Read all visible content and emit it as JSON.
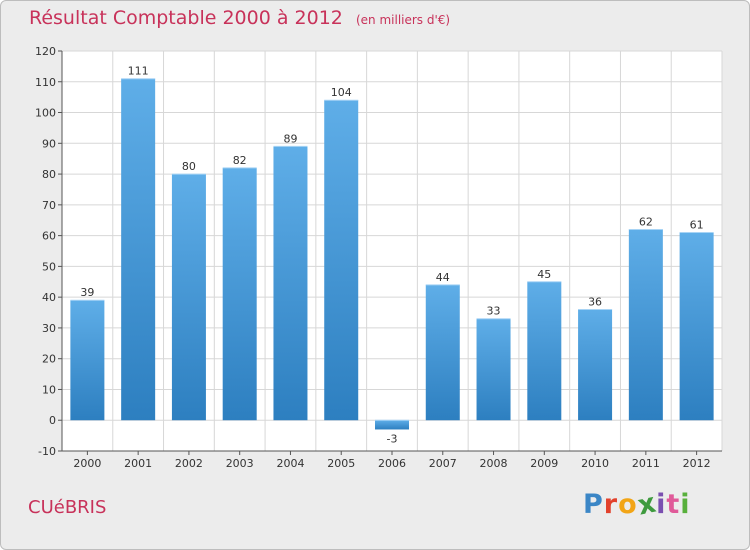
{
  "header": {
    "title": "Résultat Comptable 2000 à 2012",
    "subtitle": "(en milliers d'€)"
  },
  "footer": {
    "commune": "CUéBRIS"
  },
  "logo": {
    "letters": [
      "P",
      "r",
      "o",
      "x",
      "i",
      "t",
      "i"
    ],
    "colors": [
      "#3b86c6",
      "#e2412c",
      "#f2a516",
      "#3e9a3e",
      "#7a4fb0",
      "#e05a99",
      "#58b03c"
    ]
  },
  "colors": {
    "bar_top": "#5faee8",
    "bar_bottom": "#2d7fc0",
    "grid": "#d7d7d7",
    "axis": "#555555",
    "text": "#333333",
    "title": "#c8325a"
  },
  "chart_data": {
    "type": "bar",
    "categories": [
      "2000",
      "2001",
      "2002",
      "2003",
      "2004",
      "2005",
      "2006",
      "2007",
      "2008",
      "2009",
      "2010",
      "2011",
      "2012"
    ],
    "values": [
      39,
      111,
      80,
      82,
      89,
      104,
      -3,
      44,
      33,
      45,
      36,
      62,
      61
    ],
    "data_labels": [
      "39",
      "111",
      "80",
      "82",
      "89",
      "104",
      "-3",
      "44",
      "33",
      "45",
      "36",
      "62",
      "61"
    ],
    "yticks": [
      "-10",
      "0",
      "10",
      "20",
      "30",
      "40",
      "50",
      "60",
      "70",
      "80",
      "90",
      "100",
      "110",
      "120"
    ],
    "ylim": [
      -10,
      120
    ],
    "grid": true,
    "legend": "none"
  }
}
